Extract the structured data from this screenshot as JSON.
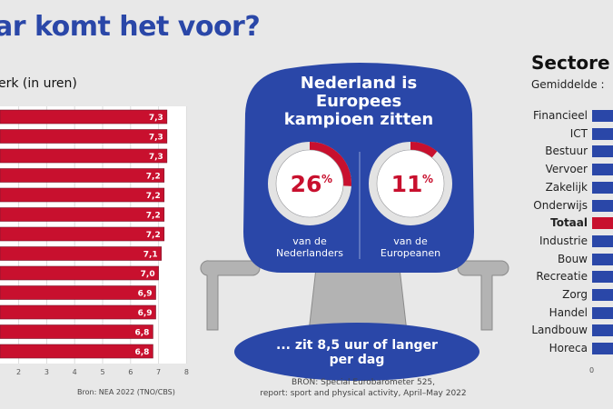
{
  "header": {
    "title": "ar komt het voor?"
  },
  "colors": {
    "blue": "#2a47a8",
    "red": "#c8102e",
    "gray": "#b3b3b3",
    "background": "#e8e8e8"
  },
  "chart_data": [
    {
      "type": "bar",
      "orientation": "horizontal",
      "title": "erk (in uren)",
      "values": [
        7.3,
        7.3,
        7.3,
        7.2,
        7.2,
        7.2,
        7.2,
        7.1,
        7.0,
        6.9,
        6.9,
        6.8,
        6.8
      ],
      "value_labels": [
        "7,3",
        "7,3",
        "7,3",
        "7,2",
        "7,2",
        "7,2",
        "7,2",
        "7,1",
        "7,0",
        "6,9",
        "6,9",
        "6,8",
        "6,8"
      ],
      "xticks": [
        "2",
        "3",
        "4",
        "5",
        "6",
        "7",
        "8"
      ],
      "xlim": [
        0,
        8
      ],
      "grid": true,
      "source": "Bron: NEA 2022 (TNO/CBS)"
    },
    {
      "type": "bar",
      "orientation": "horizontal",
      "title": "Sectore",
      "subtitle": "Gemiddelde :",
      "categories": [
        "Financieel",
        "ICT",
        "Bestuur",
        "Vervoer",
        "Zakelijk",
        "Onderwijs",
        "Totaal",
        "Industrie",
        "Bouw",
        "Recreatie",
        "Zorg",
        "Handel",
        "Landbouw",
        "Horeca"
      ],
      "highlight": "Totaal",
      "xticks": [
        "0"
      ]
    }
  ],
  "center": {
    "headline": [
      "Nederland is",
      "Europees",
      "kampioen zitten"
    ],
    "donuts": [
      {
        "percent": 26,
        "value_label": "26",
        "unit": "%",
        "caption": [
          "van de",
          "Nederlanders"
        ]
      },
      {
        "percent": 11,
        "value_label": "11",
        "unit": "%",
        "caption": [
          "van de",
          "Europeanen"
        ]
      }
    ],
    "seat_text": [
      "... zit 8,5 uur of langer",
      "per dag"
    ],
    "source": [
      "BRON: Special Eurobarometer 525,",
      "report: sport and physical activity, April–May 2022"
    ]
  }
}
